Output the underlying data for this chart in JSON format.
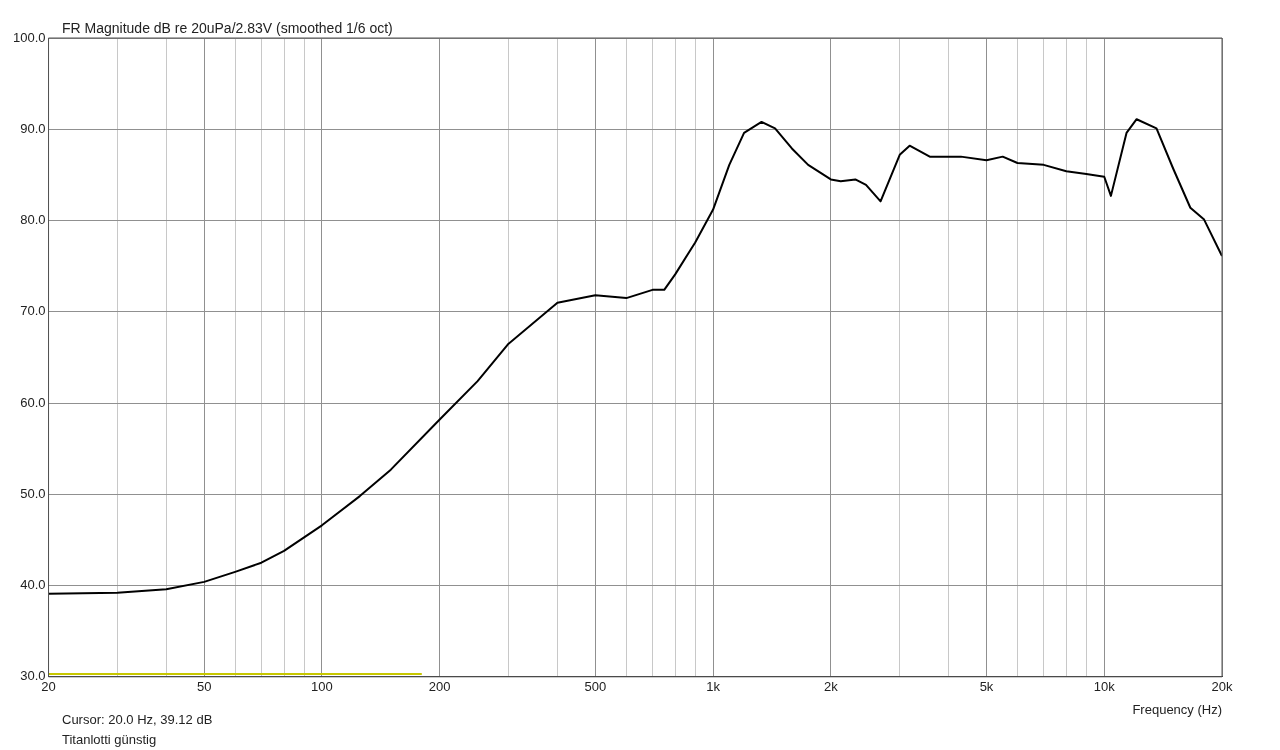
{
  "chart_data": {
    "type": "line",
    "title": "FR Magnitude dB re 20uPa/2.83V (smoothed 1/6 oct)",
    "xlabel": "Frequency (Hz)",
    "annotations": [
      "Cursor: 20.0 Hz, 39.12 dB",
      "Titanlotti günstig"
    ],
    "log": "x",
    "grid": true,
    "legend": false,
    "marker": "none",
    "line_style": "solid",
    "xlim": [
      20,
      20000
    ],
    "xticks": [
      20,
      {
        "value": 30,
        "label": null
      },
      {
        "value": 40,
        "label": null
      },
      50,
      {
        "value": 60,
        "label": null
      },
      {
        "value": 70,
        "label": null
      },
      {
        "value": 80,
        "label": null
      },
      {
        "value": 90,
        "label": null
      },
      100,
      200,
      {
        "value": 300,
        "label": null
      },
      {
        "value": 400,
        "label": null
      },
      500,
      {
        "value": 600,
        "label": null
      },
      {
        "value": 700,
        "label": null
      },
      {
        "value": 800,
        "label": null
      },
      {
        "value": 900,
        "label": null
      },
      {
        "value": 1000,
        "label": "1k"
      },
      {
        "value": 2000,
        "label": "2k"
      },
      {
        "value": 3000,
        "label": null
      },
      {
        "value": 4000,
        "label": null
      },
      {
        "value": 5000,
        "label": "5k"
      },
      {
        "value": 6000,
        "label": null
      },
      {
        "value": 7000,
        "label": null
      },
      {
        "value": 8000,
        "label": null
      },
      {
        "value": 9000,
        "label": null
      },
      {
        "value": 10000,
        "label": "10k"
      },
      {
        "value": 20000,
        "label": "20k"
      }
    ],
    "ylim": [
      30,
      100
    ],
    "yticks": [
      {
        "value": 30,
        "label": "30.0"
      },
      {
        "value": 40,
        "label": "40.0"
      },
      {
        "value": 50,
        "label": "50.0"
      },
      {
        "value": 60,
        "label": "60.0"
      },
      {
        "value": 70,
        "label": "70.0"
      },
      {
        "value": 80,
        "label": "80.0"
      },
      {
        "value": 90,
        "label": "90.0"
      },
      {
        "value": 100,
        "label": "100.0"
      }
    ],
    "series": [
      {
        "color": "#000000",
        "x": [
          20,
          30,
          40,
          50,
          60,
          70,
          80,
          100,
          125,
          150,
          200,
          250,
          300,
          400,
          500,
          600,
          700,
          750,
          800,
          900,
          1000,
          1100,
          1200,
          1330,
          1440,
          1590,
          1750,
          2000,
          2120,
          2310,
          2460,
          2680,
          3000,
          3180,
          3580,
          4000,
          4300,
          5000,
          5500,
          6000,
          7000,
          8000,
          9000,
          10000,
          10400,
          11400,
          12100,
          13600,
          15000,
          16600,
          18000,
          20000
        ],
        "values": [
          39.1,
          39.2,
          39.6,
          40.4,
          41.5,
          42.5,
          43.8,
          46.6,
          49.8,
          52.7,
          58.2,
          62.4,
          66.5,
          71.0,
          71.8,
          71.5,
          72.4,
          72.4,
          74.1,
          77.6,
          81.2,
          86.1,
          89.6,
          90.8,
          90.1,
          87.9,
          86.1,
          84.5,
          84.3,
          84.5,
          83.9,
          82.1,
          87.2,
          88.2,
          87.0,
          87.0,
          87.0,
          86.6,
          87.0,
          86.3,
          86.1,
          85.4,
          85.1,
          84.8,
          82.7,
          89.6,
          91.1,
          90.1,
          85.7,
          81.4,
          80.1,
          76.1
        ]
      },
      {
        "color": "#c8c800",
        "x": [
          20,
          180
        ],
        "values": [
          30.3,
          30.3
        ]
      }
    ]
  }
}
